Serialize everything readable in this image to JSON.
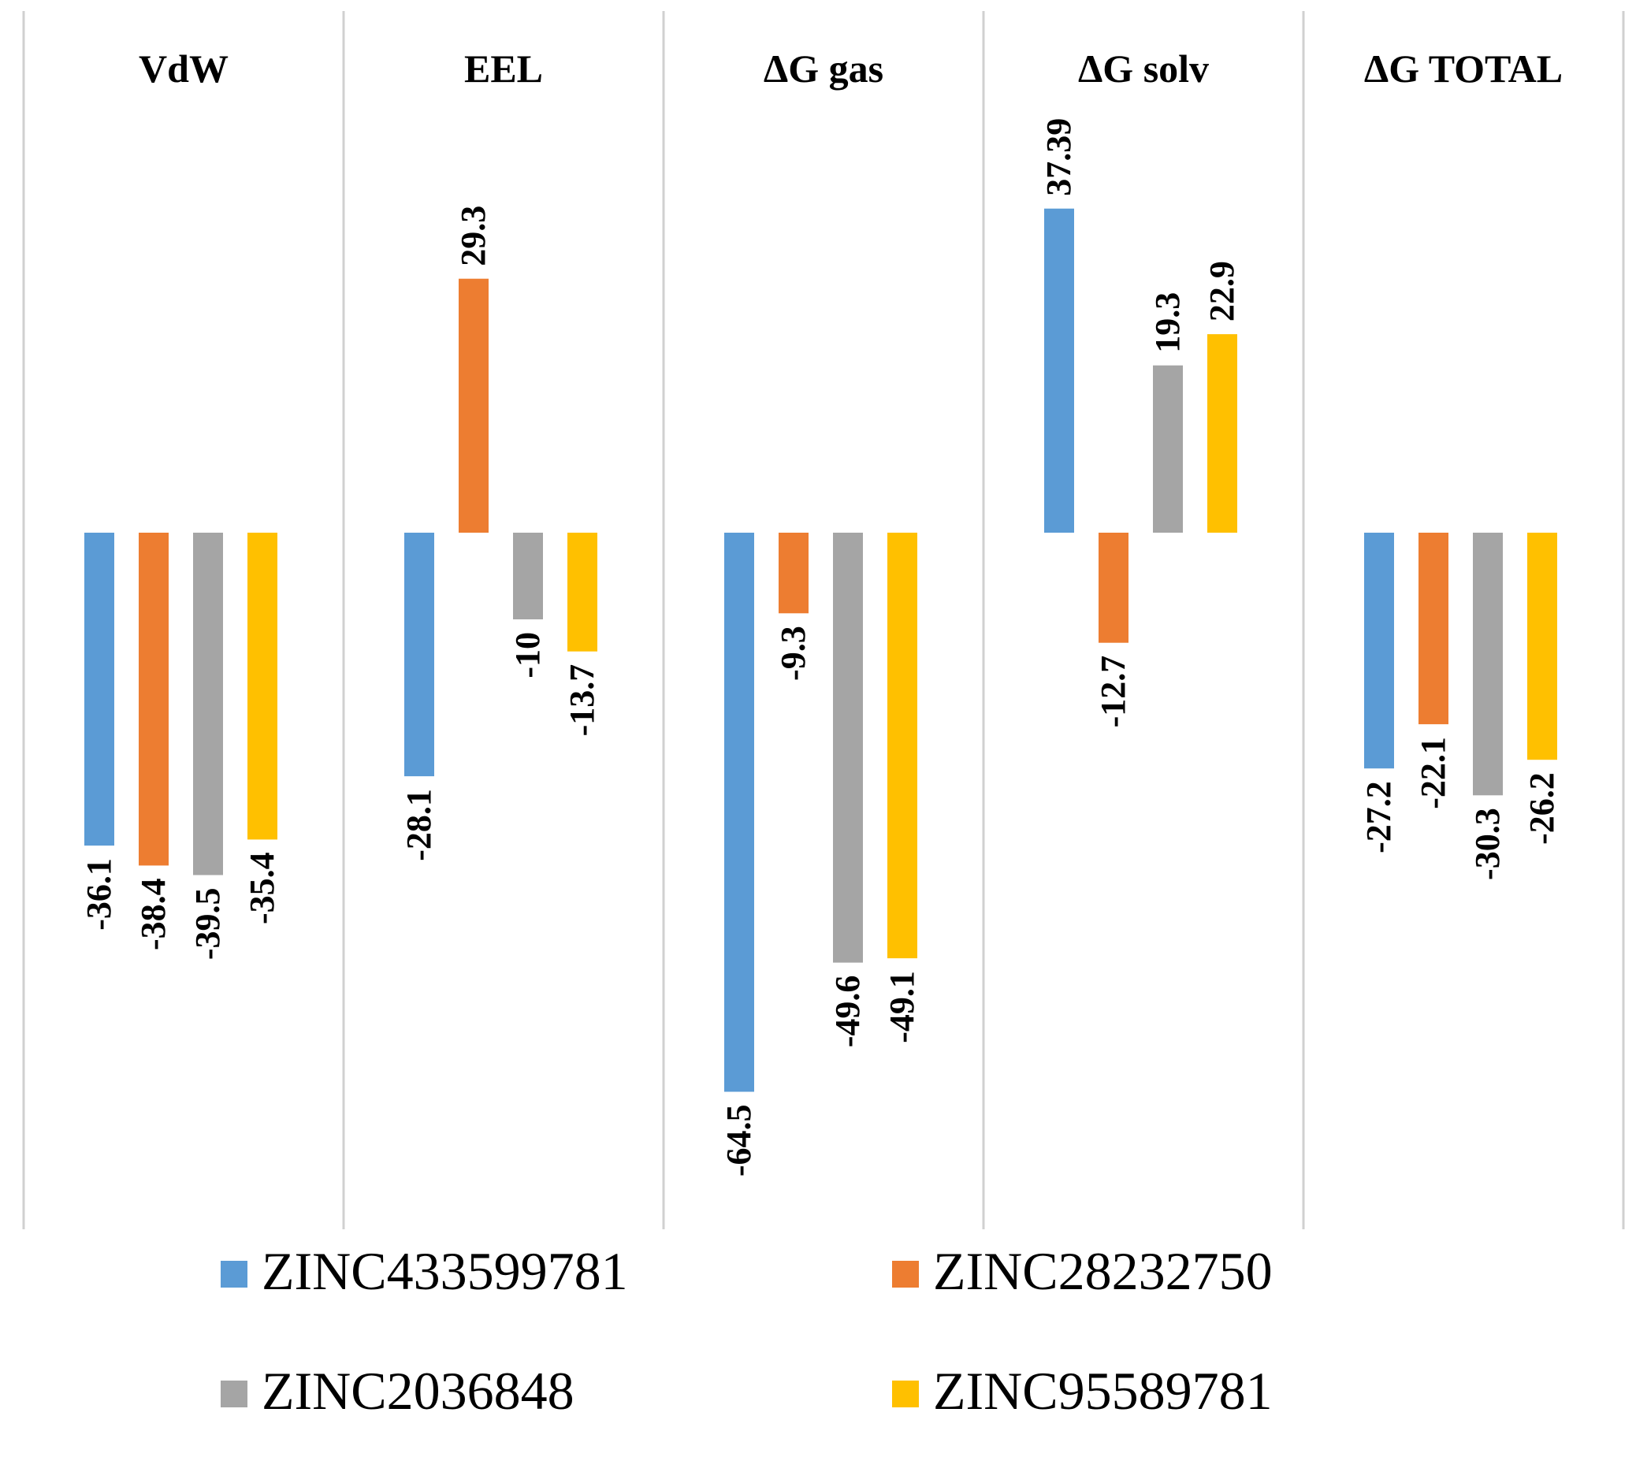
{
  "chart_data": {
    "type": "bar",
    "categories": [
      "VdW",
      "EEL",
      "ΔG gas",
      "ΔG solv",
      "ΔG TOTAL"
    ],
    "series": [
      {
        "name": "ZINC433599781",
        "color": "#5B9BD5",
        "values": [
          -36.1,
          -28.1,
          -64.5,
          37.39,
          -27.2
        ],
        "labels": [
          "-36.1",
          "-28.1",
          "-64.5",
          "37.39",
          "-27.2"
        ]
      },
      {
        "name": "ZINC28232750",
        "color": "#ED7D31",
        "values": [
          -38.4,
          29.3,
          -9.3,
          -12.7,
          -22.1
        ],
        "labels": [
          "-38.4",
          "29.3",
          "-9.3",
          "-12.7",
          "-22.1"
        ]
      },
      {
        "name": "ZINC2036848",
        "color": "#A5A5A5",
        "values": [
          -39.5,
          -10,
          -49.6,
          19.3,
          -30.3
        ],
        "labels": [
          "-39.5",
          "-10",
          "-49.6",
          "19.3",
          "-30.3"
        ]
      },
      {
        "name": "ZINC95589781",
        "color": "#FFC000",
        "values": [
          -35.4,
          -13.7,
          -49.1,
          22.9,
          -26.2
        ],
        "labels": [
          "-35.4",
          "-13.7",
          "-49.1",
          "22.9",
          "-26.2"
        ]
      }
    ],
    "ylim": [
      -80,
      60
    ],
    "grid": false,
    "data_labels": "rotated",
    "legend_position": "bottom",
    "panel_separators": true
  }
}
